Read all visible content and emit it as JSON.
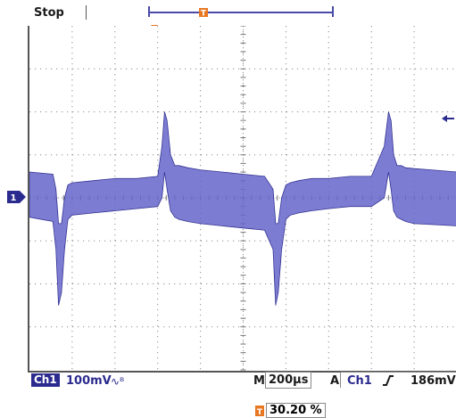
{
  "header": {
    "run_state": "Stop"
  },
  "channel": {
    "name": "Ch1",
    "marker": "1",
    "scale": "100mV",
    "bandwidth_icon": "bandwidth-limit-icon",
    "color": "#2b2b8f",
    "trace_color": "#5a5ac8"
  },
  "timebase": {
    "prefix": "M",
    "value": "200µs"
  },
  "trigger": {
    "prefix": "A",
    "source": "Ch1",
    "slope": "rising-edge-icon",
    "level": "186mV",
    "position_percent": "30.20 %",
    "marker_color": "#e87722"
  },
  "chart_data": {
    "type": "line",
    "title": "",
    "xlabel": "",
    "ylabel": "",
    "x_divisions": 10,
    "y_divisions": 8,
    "grid": true,
    "xlim": [
      0,
      10
    ],
    "ylim": [
      -4,
      4
    ],
    "series": [
      {
        "kind": "envelope",
        "x": [
          0.0,
          0.55,
          0.62,
          0.68,
          0.75,
          0.82,
          0.9,
          1.0,
          1.5,
          2.0,
          2.5,
          3.0,
          3.1,
          3.16,
          3.22,
          3.3,
          3.4,
          3.5,
          3.7,
          4.0,
          4.5,
          5.0,
          5.5,
          5.7,
          5.76,
          5.82,
          5.9,
          6.0,
          6.1,
          6.3,
          6.6,
          7.0,
          7.5,
          8.0,
          8.3,
          8.4,
          8.46,
          8.52,
          8.6,
          8.7,
          8.8,
          9.0,
          9.4,
          10.0
        ],
        "upper": [
          0.6,
          0.55,
          0.2,
          -0.6,
          -0.6,
          0.0,
          0.3,
          0.35,
          0.4,
          0.45,
          0.45,
          0.5,
          1.2,
          2.0,
          1.8,
          1.0,
          0.75,
          0.75,
          0.7,
          0.65,
          0.6,
          0.55,
          0.5,
          0.2,
          -0.6,
          -0.6,
          0.0,
          0.3,
          0.35,
          0.4,
          0.45,
          0.45,
          0.5,
          0.5,
          1.2,
          2.0,
          1.8,
          1.0,
          0.75,
          0.75,
          0.7,
          0.68,
          0.65,
          0.6
        ],
        "lower": [
          -0.45,
          -0.55,
          -1.2,
          -2.5,
          -2.2,
          -1.2,
          -0.5,
          -0.4,
          -0.35,
          -0.3,
          -0.25,
          -0.2,
          0.0,
          0.6,
          0.2,
          -0.3,
          -0.45,
          -0.5,
          -0.55,
          -0.6,
          -0.65,
          -0.7,
          -0.75,
          -1.2,
          -2.5,
          -2.2,
          -1.2,
          -0.5,
          -0.4,
          -0.35,
          -0.3,
          -0.25,
          -0.2,
          -0.2,
          0.0,
          0.6,
          0.2,
          -0.3,
          -0.45,
          -0.5,
          -0.55,
          -0.6,
          -0.62,
          -0.65
        ]
      }
    ]
  }
}
